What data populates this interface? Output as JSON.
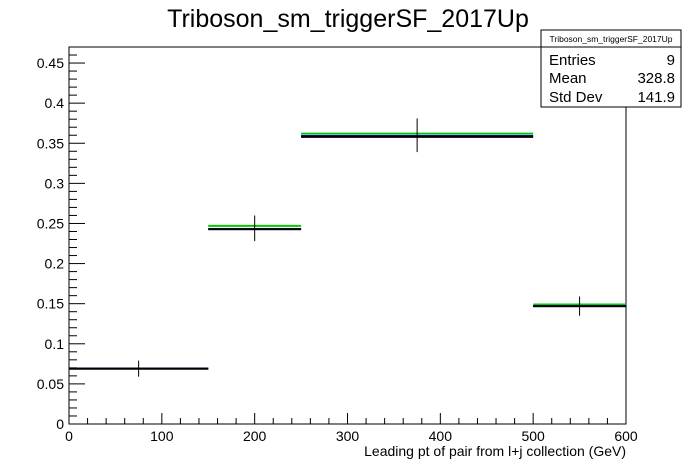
{
  "chart_data": {
    "type": "histogram",
    "title": "Triboson_sm_triggerSF_2017Up",
    "xlabel": "Leading pt of pair from l+j collection (GeV)",
    "ylabel": "",
    "xlim": [
      0,
      600
    ],
    "ylim": [
      0,
      0.47
    ],
    "x_ticks": [
      0,
      100,
      200,
      300,
      400,
      500,
      600
    ],
    "y_ticks": [
      0,
      0.05,
      0.1,
      0.15,
      0.2,
      0.25,
      0.3,
      0.35,
      0.4,
      0.45
    ],
    "x_tick_labels": [
      "0",
      "100",
      "200",
      "300",
      "400",
      "500",
      "600"
    ],
    "y_tick_labels": [
      "0",
      "0.05",
      "0.1",
      "0.15",
      "0.2",
      "0.25",
      "0.3",
      "0.35",
      "0.4",
      "0.45"
    ],
    "bins": [
      {
        "xlow": 0,
        "xhigh": 150,
        "x_center": 75,
        "value": 0.069,
        "err": 0.01
      },
      {
        "xlow": 150,
        "xhigh": 250,
        "x_center": 200,
        "value": 0.244,
        "err": 0.016
      },
      {
        "xlow": 250,
        "xhigh": 500,
        "x_center": 375,
        "value": 0.36,
        "err": 0.021
      },
      {
        "xlow": 500,
        "xhigh": 600,
        "x_center": 550,
        "value": 0.147,
        "err": 0.012
      }
    ],
    "series": [
      {
        "color": "#00cc00",
        "values": [
          0.069,
          0.247,
          0.362,
          0.149
        ]
      },
      {
        "color": "#0000cc",
        "values": [
          0.069,
          0.243,
          0.359,
          0.147
        ]
      },
      {
        "color": "#000000",
        "values": [
          0.069,
          0.243,
          0.358,
          0.147
        ]
      }
    ],
    "grid": false,
    "legend": "none",
    "stats_box": {
      "title": "Triboson_sm_triggerSF_2017Up",
      "placement": "top-right",
      "rows": [
        {
          "label": "Entries",
          "value": "9"
        },
        {
          "label": "Mean",
          "value": "328.8"
        },
        {
          "label": "Std Dev",
          "value": "141.9"
        }
      ]
    }
  }
}
